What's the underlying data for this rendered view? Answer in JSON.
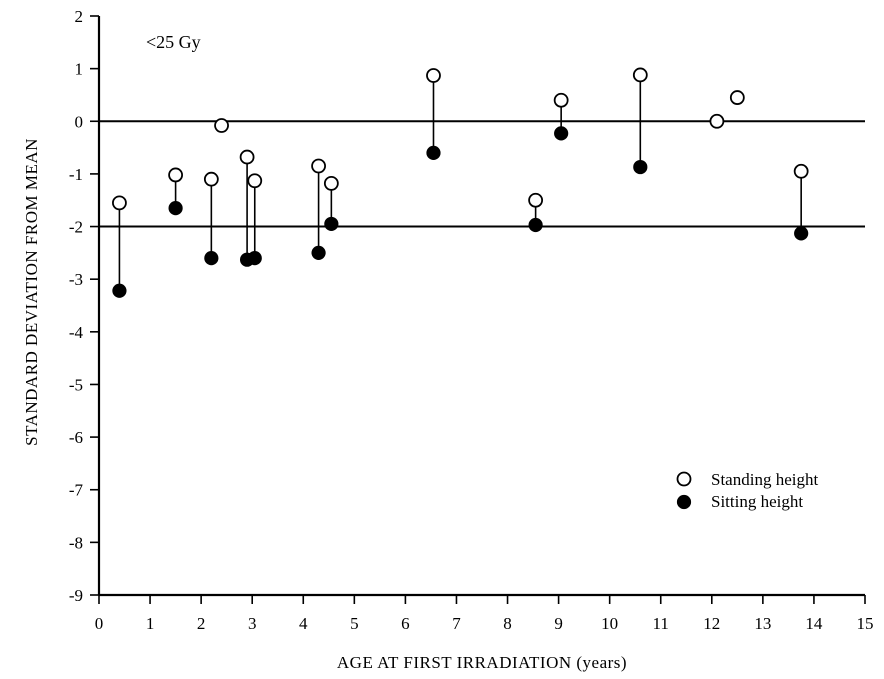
{
  "chart_data": {
    "type": "scatter",
    "title": "",
    "annotation": "<25  Gy",
    "xlabel": "AGE AT FIRST IRRADIATION (years)",
    "ylabel": "STANDARD DEVIATION FROM MEAN",
    "xlim": [
      0,
      15
    ],
    "ylim": [
      -9,
      2
    ],
    "x_ticks": [
      0,
      1,
      2,
      3,
      4,
      5,
      6,
      7,
      8,
      9,
      10,
      11,
      12,
      13,
      14,
      15
    ],
    "y_ticks": [
      2,
      1,
      0,
      -1,
      -2,
      -3,
      -4,
      -5,
      -6,
      -7,
      -8,
      -9
    ],
    "x_tick_labels": [
      "0",
      "1",
      "2",
      "3",
      "4",
      "5",
      "6",
      "7",
      "8",
      "9",
      "10",
      "11",
      "12",
      "13",
      "14",
      "15"
    ],
    "y_tick_labels": [
      "2",
      "1",
      "0",
      "-1",
      "-2",
      "-3",
      "-4",
      "-5",
      "-6",
      "-7",
      "-8",
      "-9"
    ],
    "reference_lines": [
      0,
      -2
    ],
    "grid": false,
    "legend_position": "lower-right",
    "series": [
      {
        "name": "Standing height",
        "marker": "open-circle",
        "x": [
          0.4,
          1.5,
          2.2,
          2.4,
          2.9,
          3.05,
          4.3,
          4.55,
          6.55,
          8.55,
          9.05,
          10.6,
          12.1,
          12.5,
          13.75
        ],
        "y": [
          -1.55,
          -1.02,
          -1.1,
          -0.08,
          -0.68,
          -1.13,
          -0.85,
          -1.18,
          0.87,
          -1.5,
          0.4,
          0.88,
          0.0,
          0.45,
          -0.95
        ]
      },
      {
        "name": "Sitting height",
        "marker": "filled-circle",
        "x": [
          0.4,
          1.5,
          2.2,
          2.9,
          3.05,
          4.3,
          4.55,
          6.55,
          8.55,
          9.05,
          10.6,
          13.75
        ],
        "y": [
          -3.22,
          -1.65,
          -2.6,
          -2.63,
          -2.6,
          -2.5,
          -1.95,
          -0.6,
          -1.97,
          -0.23,
          -0.87,
          -2.13
        ]
      }
    ],
    "pairs_linked_by_stems": [
      {
        "x": 0.4,
        "standing": -1.55,
        "sitting": -3.22
      },
      {
        "x": 1.5,
        "standing": -1.02,
        "sitting": -1.65
      },
      {
        "x": 2.2,
        "standing": -1.1,
        "sitting": -2.6
      },
      {
        "x": 2.9,
        "standing": -0.68,
        "sitting": -2.63
      },
      {
        "x": 3.05,
        "standing": -1.13,
        "sitting": -2.6
      },
      {
        "x": 4.3,
        "standing": -0.85,
        "sitting": -2.5
      },
      {
        "x": 4.55,
        "standing": -1.18,
        "sitting": -1.95
      },
      {
        "x": 6.55,
        "standing": 0.87,
        "sitting": -0.6
      },
      {
        "x": 8.55,
        "standing": -1.5,
        "sitting": -1.97
      },
      {
        "x": 9.05,
        "standing": 0.4,
        "sitting": -0.23
      },
      {
        "x": 10.6,
        "standing": 0.88,
        "sitting": -0.87
      },
      {
        "x": 13.75,
        "standing": -0.95,
        "sitting": -2.13
      }
    ]
  }
}
